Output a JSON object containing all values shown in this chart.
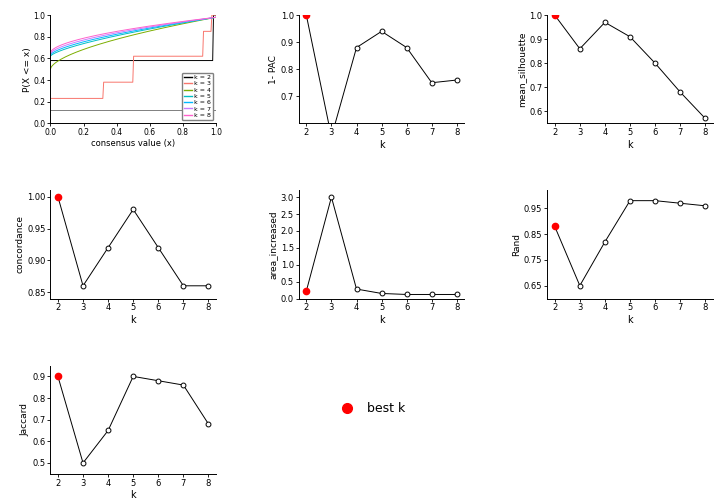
{
  "k_values": [
    2,
    3,
    4,
    5,
    6,
    7,
    8
  ],
  "one_minus_pac": [
    1.0,
    0.55,
    0.88,
    0.94,
    0.88,
    0.75,
    0.76
  ],
  "mean_silhouette": [
    1.0,
    0.86,
    0.97,
    0.91,
    0.8,
    0.68,
    0.57
  ],
  "concordance": [
    1.0,
    0.86,
    0.92,
    0.98,
    0.92,
    0.86,
    0.86
  ],
  "area_increased": [
    0.22,
    3.0,
    0.28,
    0.15,
    0.12,
    0.12,
    0.12
  ],
  "rand": [
    0.88,
    0.65,
    0.82,
    0.98,
    0.98,
    0.97,
    0.96
  ],
  "jaccard": [
    0.9,
    0.5,
    0.65,
    0.9,
    0.88,
    0.86,
    0.68
  ],
  "best_k_index": 0,
  "legend_labels": [
    "k = 2",
    "k = 3",
    "k = 4",
    "k = 5",
    "k = 6",
    "k = 7",
    "k = 8"
  ],
  "legend_colors": [
    "#000000",
    "#F8766D",
    "#7CAE00",
    "#00BFC4",
    "#00B8FF",
    "#C77CFF",
    "#FF61CC"
  ],
  "ecdf_colors": [
    "#000000",
    "#F8766D",
    "#7CAE00",
    "#00BFC4",
    "#00B8FF",
    "#C77CFF",
    "#FF61CC"
  ],
  "open_circle_color": "white",
  "open_circle_edge": "black",
  "best_k_color": "red",
  "line_color": "black",
  "gray_line_y": 0.12,
  "pac_ylim": [
    0.6,
    1.0
  ],
  "pac_yticks": [
    0.7,
    0.8,
    0.9,
    1.0
  ],
  "silhouette_ylim": [
    0.55,
    1.0
  ],
  "silhouette_yticks": [
    0.6,
    0.7,
    0.8,
    0.9,
    1.0
  ],
  "concordance_ylim": [
    0.84,
    1.01
  ],
  "concordance_yticks": [
    0.85,
    0.9,
    0.95,
    1.0
  ],
  "area_ylim": [
    0.0,
    3.2
  ],
  "area_yticks": [
    0.0,
    0.5,
    1.0,
    1.5,
    2.0,
    2.5,
    3.0
  ],
  "rand_ylim": [
    0.6,
    1.02
  ],
  "rand_yticks": [
    0.65,
    0.75,
    0.85,
    0.95
  ],
  "jaccard_ylim": [
    0.45,
    0.95
  ],
  "jaccard_yticks": [
    0.5,
    0.6,
    0.7,
    0.8,
    0.9
  ]
}
